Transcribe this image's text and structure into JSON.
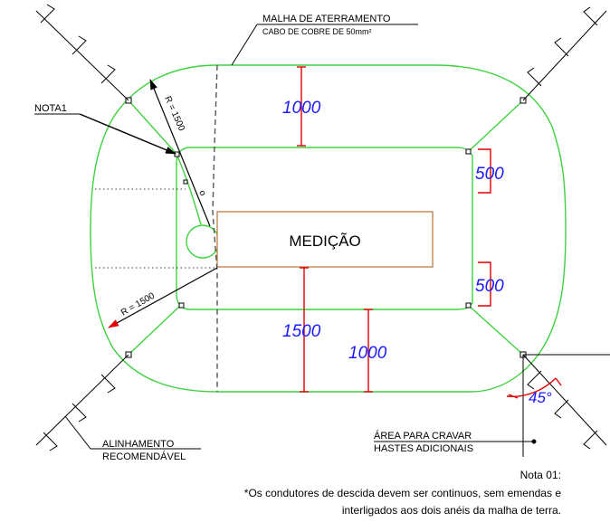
{
  "labels": {
    "malha_line1": "MALHA DE ATERRAMENTO",
    "malha_line2": "CABO DE COBRE DE 50mm²",
    "nota1": "NOTA1",
    "medicao": "MEDIÇÃO",
    "r_upper": "R = 1500",
    "r_lower": "R = 1500",
    "alinhamento_line1": "ALINHAMENTO",
    "alinhamento_line2": "RECOMENDÁVEL",
    "area_line1": "ÁREA PARA CRAVAR",
    "area_line2": "HASTES ADICIONAIS",
    "angle": "45°",
    "small_o": "o"
  },
  "dimensions": {
    "top": "1000",
    "right_upper": "500",
    "right_lower": "500",
    "bottom_left": "1500",
    "bottom_right": "1000"
  },
  "note": {
    "title": "Nota 01:",
    "line1": "*Os condutores de descida devem ser continuos, sem emendas e",
    "line2": "interligados aos dois anéis da malha de terra."
  },
  "colors": {
    "grid": "#3fd23f",
    "dimension": "#e00000",
    "dimension_text": "#1a1aff",
    "box": "#b87333"
  }
}
